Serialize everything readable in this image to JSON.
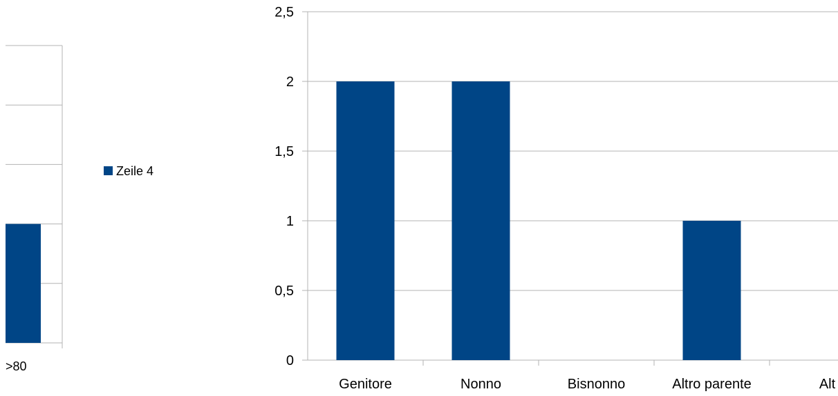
{
  "colors": {
    "bar": "#004586",
    "grid": "#b3b3b3",
    "background": "#ffffff"
  },
  "left_chart": {
    "category": ">80",
    "legend_label": "Zeile 4"
  },
  "chart_data": [
    {
      "type": "bar",
      "categories": [
        ">80"
      ],
      "series": [
        {
          "name": "Zeile 4",
          "values": [
            1
          ]
        }
      ],
      "ylim": [
        0,
        2
      ],
      "grid": true,
      "legend": "right"
    },
    {
      "type": "bar",
      "categories": [
        "Genitore",
        "Nonno",
        "Bisnonno",
        "Altro parente",
        "Alt"
      ],
      "values": [
        2,
        2,
        0,
        1,
        0
      ],
      "ylim": [
        0,
        2.5
      ],
      "yticks": [
        "0",
        "0,5",
        "1",
        "1,5",
        "2",
        "2,5"
      ],
      "grid": true
    }
  ]
}
